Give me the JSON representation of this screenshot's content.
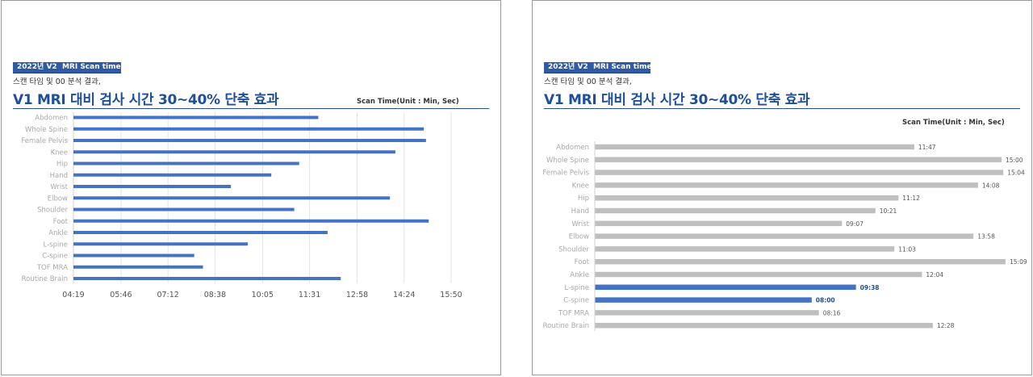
{
  "slides": [
    {
      "tag": "2022년 V2  MRI Scan time",
      "subtitle": "스캔 타임 및 00 분석 결과,",
      "headline": "V1 MRI 대비 검사 시간 30~40% 단축 효과",
      "unit_label": "Scan Time(Unit : Min, Sec)"
    },
    {
      "tag": "2022년 V2  MRI Scan time",
      "subtitle": "스캔 타임 및 00 분석 결과,",
      "headline": "V1 MRI 대비 검사 시간 30~40% 단축 효과",
      "unit_label": "Scan Time(Unit : Min, Sec)"
    }
  ],
  "colors": {
    "bar_blue": "#4472c4",
    "bar_gray": "#bfbfbf",
    "highlight": "#1f4e9a",
    "tag_bg": "#2e5aa6"
  },
  "chart_data": [
    {
      "type": "bar",
      "orientation": "horizontal",
      "value_unit": "mm:ss",
      "categories": [
        "Abdomen",
        "Whole Spine",
        "Female Pelvis",
        "Knee",
        "Hip",
        "Hand",
        "Wrist",
        "Elbow",
        "Shoulder",
        "Foot",
        "Ankle",
        "L-spine",
        "C-spine",
        "TOF MRA",
        "Routine Brain"
      ],
      "values": [
        "11:47",
        "15:00",
        "15:04",
        "14:08",
        "11:12",
        "10:21",
        "09:07",
        "13:58",
        "11:03",
        "15:09",
        "12:04",
        "09:38",
        "08:00",
        "08:16",
        "12:28"
      ],
      "x_ticks": [
        "04:19",
        "05:46",
        "07:12",
        "08:38",
        "10:05",
        "11:31",
        "12:58",
        "14:24",
        "15:50"
      ],
      "xlim": [
        "04:19",
        "15:50"
      ],
      "grid": true,
      "data_labels": false,
      "bar_color": "#4472c4"
    },
    {
      "type": "bar",
      "orientation": "horizontal",
      "value_unit": "mm:ss",
      "categories": [
        "Abdomen",
        "Whole Spine",
        "Female Pelvis",
        "Knee",
        "Hip",
        "Hand",
        "Wrist",
        "Elbow",
        "Shoulder",
        "Foot",
        "Ankle",
        "L-spine",
        "C-spine",
        "TOF MRA",
        "Routine Brain"
      ],
      "values": [
        "11:47",
        "15:00",
        "15:04",
        "14:08",
        "11:12",
        "10:21",
        "09:07",
        "13:58",
        "11:03",
        "15:09",
        "12:04",
        "09:38",
        "08:00",
        "08:16",
        "12:28"
      ],
      "highlighted": [
        "L-spine",
        "C-spine"
      ],
      "grid": false,
      "data_labels": true,
      "bar_color": "#bfbfbf",
      "highlight_color": "#4472c4"
    }
  ]
}
